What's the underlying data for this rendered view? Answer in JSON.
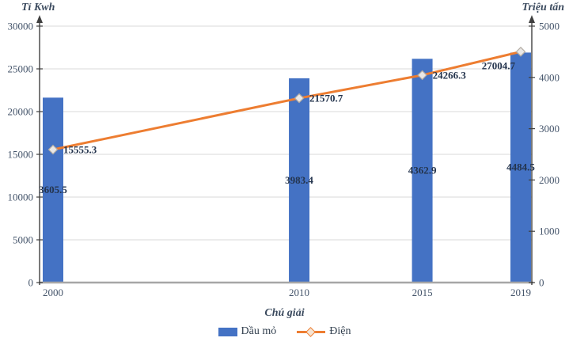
{
  "chart_data": {
    "type": "bar",
    "subtype": "bar+line combo, linear year x-axis",
    "x": [
      2000,
      2010,
      2015,
      2019
    ],
    "series": [
      {
        "name": "Dầu mỏ",
        "type": "bar",
        "axis": "right",
        "values": [
          3605.5,
          3983.4,
          4362.9,
          4484.5
        ],
        "labels": [
          "3605.5",
          "3983.4",
          "4362.9",
          "4484.5"
        ],
        "color": "#4472C4"
      },
      {
        "name": "Điện",
        "type": "line",
        "axis": "left",
        "values": [
          15555.3,
          21570.7,
          24266.3,
          27004.7
        ],
        "labels": [
          "15555.3",
          "21570.7",
          "24266.3",
          "27004.7"
        ],
        "label_pos": [
          "right",
          "right",
          "right",
          "below-left"
        ],
        "color": "#ED7D31",
        "marker": {
          "shape": "diamond",
          "fill": "#EAE8E6",
          "stroke": "#B3ACA4"
        }
      }
    ],
    "left_axis": {
      "title": "Tỉ Kwh",
      "min": 0,
      "max": 30000,
      "step": 5000
    },
    "right_axis": {
      "title": "Triệu tấn",
      "min": 0,
      "max": 5000,
      "step": 1000
    },
    "x_range": {
      "min": 2000,
      "max": 2019
    },
    "grid": true,
    "legend": {
      "position": "bottom",
      "title": "Chú giải",
      "items": [
        "Dầu mỏ",
        "Điện"
      ]
    },
    "colors": {
      "tick_label": "#44546A",
      "data_label": "#24344D",
      "gridline": "#D9D9D9",
      "y_axis_line": "#404040",
      "x_axis_line": "#A6A6A6",
      "legend_marker_stroke": "#ED7D31",
      "legend_marker_fill": "#F6E4D3"
    }
  }
}
